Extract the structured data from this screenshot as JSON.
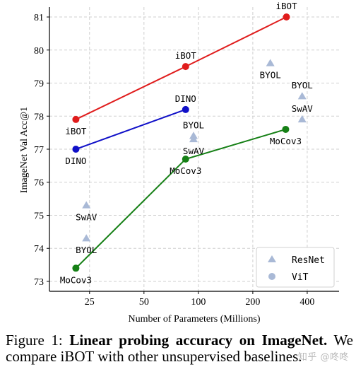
{
  "chart_data": {
    "type": "line",
    "xlabel": "Number of Parameters (Millions)",
    "ylabel": "ImageNet Val Acc@1",
    "x_scale": "log",
    "xlim": [
      15,
      600
    ],
    "ylim": [
      72.7,
      81.3
    ],
    "x_ticks": [
      25,
      50,
      100,
      200,
      400
    ],
    "x_tick_labels": [
      "25",
      "50",
      "100",
      "200",
      "400"
    ],
    "y_ticks": [
      73,
      74,
      75,
      76,
      77,
      78,
      79,
      80,
      81
    ],
    "y_tick_labels": [
      "73",
      "74",
      "75",
      "76",
      "77",
      "78",
      "79",
      "80",
      "81"
    ],
    "grid": true,
    "legend": {
      "position": "bottom-right",
      "entries": [
        {
          "label": "ResNet",
          "marker": "triangle",
          "color": "#a9b9d6"
        },
        {
          "label": "ViT",
          "marker": "circle",
          "color": "#a9b9d6"
        }
      ]
    },
    "series": [
      {
        "method": "iBOT",
        "arch": "ViT",
        "color": "#e01c1c",
        "points": [
          {
            "x": 21,
            "y": 77.9,
            "label": "iBOT",
            "label_pos": "below"
          },
          {
            "x": 85,
            "y": 79.5,
            "label": "iBOT",
            "label_pos": "above"
          },
          {
            "x": 307,
            "y": 81.0,
            "label": "iBOT",
            "label_pos": "above"
          }
        ]
      },
      {
        "method": "DINO",
        "arch": "ViT",
        "color": "#1010c8",
        "points": [
          {
            "x": 21,
            "y": 77.0,
            "label": "DINO",
            "label_pos": "below"
          },
          {
            "x": 85,
            "y": 78.2,
            "label": "DINO",
            "label_pos": "above"
          }
        ]
      },
      {
        "method": "MoCov3",
        "arch": "ViT",
        "color": "#168016",
        "points": [
          {
            "x": 21,
            "y": 73.4,
            "label": "MoCov3",
            "label_pos": "below"
          },
          {
            "x": 85,
            "y": 76.7,
            "label": "MoCov3",
            "label_pos": "below"
          },
          {
            "x": 304,
            "y": 77.6,
            "label": "MoCov3",
            "label_pos": "below"
          }
        ]
      }
    ],
    "resnet_points": [
      {
        "x": 24,
        "y": 75.3,
        "label": "SwAV",
        "label_pos": "below"
      },
      {
        "x": 24,
        "y": 74.3,
        "label": "BYOL",
        "label_pos": "below"
      },
      {
        "x": 94,
        "y": 77.4,
        "label": "BYOL",
        "label_pos": "above"
      },
      {
        "x": 94,
        "y": 77.3,
        "label": "SwAV",
        "label_pos": "below"
      },
      {
        "x": 250,
        "y": 79.6,
        "label": "BYOL",
        "label_pos": "below"
      },
      {
        "x": 375,
        "y": 78.6,
        "label": "BYOL",
        "label_pos": "above"
      },
      {
        "x": 375,
        "y": 77.9,
        "label": "SwAV",
        "label_pos": "above"
      }
    ],
    "resnet_color": "#a9b9d6"
  },
  "caption": {
    "prefix": "Figure 1: ",
    "bold": "Linear probing accuracy on ImageNet.",
    "rest": " We compare iBOT with other unsupervised base­lines."
  },
  "watermark": "知乎 @咚咚"
}
